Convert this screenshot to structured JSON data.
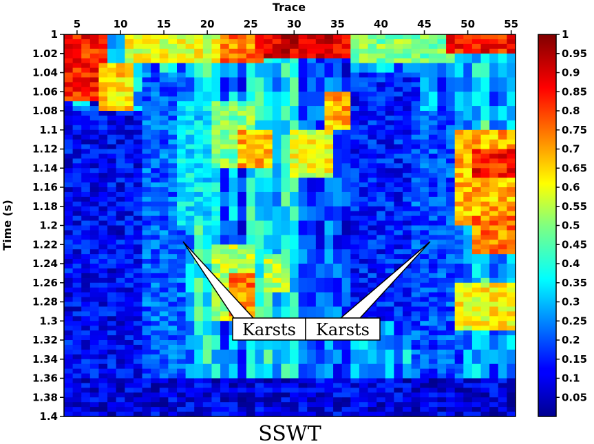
{
  "chart_data": {
    "type": "heatmap",
    "title": "SSWT",
    "xlabel": "Trace",
    "ylabel": "Time (s)",
    "x_range": [
      3.5,
      55.5
    ],
    "y_range": [
      1.0,
      1.4
    ],
    "x_ticks": [
      5,
      10,
      15,
      20,
      25,
      30,
      35,
      40,
      45,
      50,
      55
    ],
    "y_ticks": [
      1,
      1.02,
      1.04,
      1.06,
      1.08,
      1.1,
      1.12,
      1.14,
      1.16,
      1.18,
      1.2,
      1.22,
      1.24,
      1.26,
      1.28,
      1.3,
      1.32,
      1.34,
      1.36,
      1.38,
      1.4
    ],
    "colorbar": {
      "colormap": "jet",
      "range": [
        0,
        1
      ],
      "ticks": [
        0.05,
        0.1,
        0.15,
        0.2,
        0.25,
        0.3,
        0.35,
        0.4,
        0.45,
        0.5,
        0.55,
        0.6,
        0.65,
        0.7,
        0.75,
        0.8,
        0.85,
        0.9,
        0.95,
        1
      ]
    },
    "annotations": [
      {
        "text": "Karsts",
        "pointer_to": {
          "trace": 17.5,
          "time": 1.215
        }
      },
      {
        "text": "Karsts",
        "pointer_to": {
          "trace": 46,
          "time": 1.215
        }
      }
    ],
    "regions": [
      {
        "trace": [
          3.5,
          8
        ],
        "time": [
          1.0,
          1.07
        ],
        "value": 0.85
      },
      {
        "trace": [
          8,
          11
        ],
        "time": [
          1.03,
          1.08
        ],
        "value": 0.65
      },
      {
        "trace": [
          11,
          22
        ],
        "time": [
          1.0,
          1.03
        ],
        "value": 0.6
      },
      {
        "trace": [
          22,
          26
        ],
        "time": [
          1.0,
          1.03
        ],
        "value": 0.75
      },
      {
        "trace": [
          26,
          37
        ],
        "time": [
          1.0,
          1.025
        ],
        "value": 0.9
      },
      {
        "trace": [
          37,
          48
        ],
        "time": [
          1.0,
          1.03
        ],
        "value": 0.5
      },
      {
        "trace": [
          48,
          55.5
        ],
        "time": [
          1.0,
          1.02
        ],
        "value": 0.85
      },
      {
        "trace": [
          3.5,
          13
        ],
        "time": [
          1.08,
          1.4
        ],
        "value": 0.12
      },
      {
        "trace": [
          13,
          17
        ],
        "time": [
          1.04,
          1.4
        ],
        "value": 0.22
      },
      {
        "trace": [
          17,
          21
        ],
        "time": [
          1.07,
          1.2
        ],
        "value": 0.35
      },
      {
        "trace": [
          21,
          25
        ],
        "time": [
          1.07,
          1.14
        ],
        "value": 0.5
      },
      {
        "trace": [
          24,
          27
        ],
        "time": [
          1.1,
          1.14
        ],
        "value": 0.7
      },
      {
        "trace": [
          30,
          34
        ],
        "time": [
          1.1,
          1.15
        ],
        "value": 0.6
      },
      {
        "trace": [
          34,
          36
        ],
        "time": [
          1.06,
          1.1
        ],
        "value": 0.7
      },
      {
        "trace": [
          37,
          44
        ],
        "time": [
          1.04,
          1.3
        ],
        "value": 0.15
      },
      {
        "trace": [
          44,
          49
        ],
        "time": [
          1.08,
          1.4
        ],
        "value": 0.2
      },
      {
        "trace": [
          49,
          55.5
        ],
        "time": [
          1.1,
          1.2
        ],
        "value": 0.7
      },
      {
        "trace": [
          51,
          55.5
        ],
        "time": [
          1.12,
          1.15
        ],
        "value": 0.85
      },
      {
        "trace": [
          51,
          55
        ],
        "time": [
          1.19,
          1.23
        ],
        "value": 0.75
      },
      {
        "trace": [
          49,
          55.5
        ],
        "time": [
          1.26,
          1.31
        ],
        "value": 0.62
      },
      {
        "trace": [
          21,
          25
        ],
        "time": [
          1.22,
          1.3
        ],
        "value": 0.55
      },
      {
        "trace": [
          23,
          25
        ],
        "time": [
          1.25,
          1.3
        ],
        "value": 0.75
      },
      {
        "trace": [
          27,
          29
        ],
        "time": [
          1.23,
          1.27
        ],
        "value": 0.55
      },
      {
        "trace": [
          3.5,
          55.5
        ],
        "time": [
          1.36,
          1.4
        ],
        "value": 0.1
      }
    ]
  }
}
